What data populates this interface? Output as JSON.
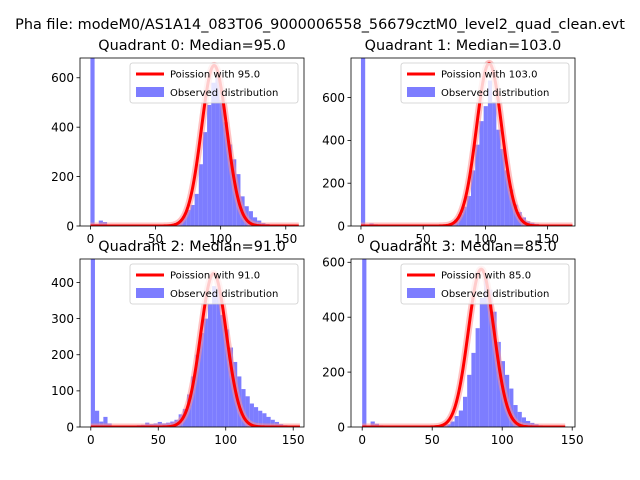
{
  "figure": {
    "suptitle": "Pha file: modeM0/AS1A14_083T06_9000006558_56679cztM0_level2_quad_clean.evt"
  },
  "colors": {
    "hist": "#7d7dff",
    "curve": "#ff0000",
    "curve_halo": "#ff9090"
  },
  "chart_data": [
    {
      "type": "bar",
      "title": "Quadrant 0: Median=95.0",
      "median": 95.0,
      "xlim": [
        -8,
        164
      ],
      "ylim": [
        0,
        680
      ],
      "xticks": [
        0,
        50,
        100,
        150
      ],
      "yticks": [
        0,
        200,
        400,
        600
      ],
      "legend": {
        "position": "top-right",
        "entries": [
          "Poission with 95.0",
          "Observed distribution"
        ]
      },
      "bin_width": 3.2,
      "series": [
        {
          "name": "Observed distribution",
          "kind": "histogram",
          "bins": [
            [
              0,
              680
            ],
            [
              3.2,
              8
            ],
            [
              6.4,
              22
            ],
            [
              9.6,
              16
            ],
            [
              12.8,
              6
            ],
            [
              16,
              4
            ],
            [
              19.2,
              3
            ],
            [
              22.4,
              2
            ],
            [
              25.6,
              2
            ],
            [
              28.8,
              2
            ],
            [
              32,
              2
            ],
            [
              35.2,
              2
            ],
            [
              38.4,
              2
            ],
            [
              41.6,
              3
            ],
            [
              44.8,
              3
            ],
            [
              48,
              4
            ],
            [
              51.2,
              4
            ],
            [
              54.4,
              5
            ],
            [
              57.6,
              6
            ],
            [
              60.8,
              8
            ],
            [
              64,
              12
            ],
            [
              67.2,
              20
            ],
            [
              70.4,
              40
            ],
            [
              73.6,
              65
            ],
            [
              76.8,
              85
            ],
            [
              80,
              130
            ],
            [
              83.2,
              250
            ],
            [
              86.4,
              380
            ],
            [
              89.6,
              490
            ],
            [
              92.8,
              580
            ],
            [
              96,
              600
            ],
            [
              99.2,
              510
            ],
            [
              102.4,
              420
            ],
            [
              105.6,
              330
            ],
            [
              108.8,
              270
            ],
            [
              112,
              210
            ],
            [
              115.2,
              120
            ],
            [
              118.4,
              80
            ],
            [
              121.6,
              60
            ],
            [
              124.8,
              35
            ],
            [
              128,
              22
            ],
            [
              131.2,
              12
            ],
            [
              134.4,
              8
            ],
            [
              137.6,
              5
            ],
            [
              140.8,
              3
            ],
            [
              144,
              2
            ],
            [
              147.2,
              2
            ],
            [
              150.4,
              1
            ],
            [
              153.6,
              1
            ]
          ]
        },
        {
          "name": "Poission with 95.0",
          "kind": "poisson_curve",
          "mean": 95.0,
          "peak": 650,
          "x_range": [
            0,
            160
          ]
        }
      ]
    },
    {
      "type": "bar",
      "title": "Quadrant 1: Median=103.0",
      "median": 103.0,
      "xlim": [
        -8,
        172
      ],
      "ylim": [
        0,
        785
      ],
      "xticks": [
        0,
        50,
        100,
        150
      ],
      "yticks": [
        0,
        200,
        400,
        600
      ],
      "legend": {
        "position": "top-right",
        "entries": [
          "Poission with 103.0",
          "Observed distribution"
        ]
      },
      "bin_width": 3.4,
      "series": [
        {
          "name": "Observed distribution",
          "kind": "histogram",
          "bins": [
            [
              0,
              785
            ],
            [
              3.4,
              6
            ],
            [
              6.8,
              12
            ],
            [
              10.2,
              8
            ],
            [
              13.6,
              5
            ],
            [
              17,
              3
            ],
            [
              20.4,
              2
            ],
            [
              23.8,
              2
            ],
            [
              27.2,
              2
            ],
            [
              30.6,
              2
            ],
            [
              34,
              2
            ],
            [
              37.4,
              2
            ],
            [
              40.8,
              2
            ],
            [
              44.2,
              2
            ],
            [
              47.6,
              3
            ],
            [
              51,
              3
            ],
            [
              54.4,
              3
            ],
            [
              57.8,
              4
            ],
            [
              61.2,
              5
            ],
            [
              64.6,
              6
            ],
            [
              68,
              8
            ],
            [
              71.4,
              15
            ],
            [
              74.8,
              30
            ],
            [
              78.2,
              55
            ],
            [
              81.6,
              90
            ],
            [
              85,
              140
            ],
            [
              88.4,
              260
            ],
            [
              91.8,
              380
            ],
            [
              95.2,
              490
            ],
            [
              98.6,
              560
            ],
            [
              102,
              680
            ],
            [
              105.4,
              580
            ],
            [
              108.8,
              450
            ],
            [
              112.2,
              360
            ],
            [
              115.6,
              260
            ],
            [
              119,
              170
            ],
            [
              122.4,
              100
            ],
            [
              125.8,
              65
            ],
            [
              129.2,
              40
            ],
            [
              132.6,
              22
            ],
            [
              136,
              15
            ],
            [
              139.4,
              10
            ],
            [
              142.8,
              6
            ],
            [
              146.2,
              4
            ],
            [
              149.6,
              3
            ],
            [
              153,
              2
            ],
            [
              156.4,
              2
            ],
            [
              159.8,
              1
            ],
            [
              163.2,
              1
            ]
          ]
        },
        {
          "name": "Poission with 103.0",
          "kind": "poisson_curve",
          "mean": 103.0,
          "peak": 760,
          "x_range": [
            0,
            170
          ]
        }
      ]
    },
    {
      "type": "bar",
      "title": "Quadrant 2: Median=91.0",
      "median": 91.0,
      "xlim": [
        -8,
        158
      ],
      "ylim": [
        0,
        465
      ],
      "xticks": [
        0,
        50,
        100,
        150
      ],
      "yticks": [
        0,
        100,
        200,
        300,
        400
      ],
      "legend": {
        "position": "top-right",
        "entries": [
          "Poission with 91.0",
          "Observed distribution"
        ]
      },
      "bin_width": 3.1,
      "series": [
        {
          "name": "Observed distribution",
          "kind": "histogram",
          "bins": [
            [
              0,
              465
            ],
            [
              3.1,
              45
            ],
            [
              6.2,
              15
            ],
            [
              9.3,
              28
            ],
            [
              12.4,
              10
            ],
            [
              15.5,
              4
            ],
            [
              18.6,
              3
            ],
            [
              21.7,
              3
            ],
            [
              24.8,
              3
            ],
            [
              27.9,
              4
            ],
            [
              31,
              4
            ],
            [
              34.1,
              5
            ],
            [
              37.2,
              6
            ],
            [
              40.3,
              12
            ],
            [
              43.4,
              8
            ],
            [
              46.5,
              10
            ],
            [
              49.6,
              14
            ],
            [
              52.7,
              10
            ],
            [
              55.8,
              12
            ],
            [
              58.9,
              15
            ],
            [
              62,
              20
            ],
            [
              65.1,
              35
            ],
            [
              68.2,
              50
            ],
            [
              71.3,
              90
            ],
            [
              74.4,
              140
            ],
            [
              77.5,
              200
            ],
            [
              80.6,
              260
            ],
            [
              83.7,
              300
            ],
            [
              86.8,
              340
            ],
            [
              89.9,
              390
            ],
            [
              93,
              385
            ],
            [
              96.1,
              310
            ],
            [
              99.2,
              270
            ],
            [
              102.3,
              220
            ],
            [
              105.4,
              180
            ],
            [
              108.5,
              140
            ],
            [
              111.6,
              105
            ],
            [
              114.7,
              85
            ],
            [
              117.8,
              65
            ],
            [
              120.9,
              55
            ],
            [
              124,
              45
            ],
            [
              127.1,
              38
            ],
            [
              130.2,
              28
            ],
            [
              133.3,
              20
            ],
            [
              136.4,
              14
            ],
            [
              139.5,
              8
            ],
            [
              142.6,
              5
            ],
            [
              145.7,
              3
            ],
            [
              148.8,
              2
            ]
          ]
        },
        {
          "name": "Poission with 91.0",
          "kind": "poisson_curve",
          "mean": 91.0,
          "peak": 425,
          "x_range": [
            0,
            155
          ]
        }
      ]
    },
    {
      "type": "bar",
      "title": "Quadrant 3: Median=85.0",
      "median": 85.0,
      "xlim": [
        -8,
        152
      ],
      "ylim": [
        0,
        612
      ],
      "xticks": [
        0,
        50,
        100,
        150
      ],
      "yticks": [
        0,
        200,
        400,
        600
      ],
      "legend": {
        "position": "top-right",
        "entries": [
          "Poission with 85.0",
          "Observed distribution"
        ]
      },
      "bin_width": 3.0,
      "series": [
        {
          "name": "Observed distribution",
          "kind": "histogram",
          "bins": [
            [
              0,
              612
            ],
            [
              3,
              5
            ],
            [
              6,
              20
            ],
            [
              9,
              12
            ],
            [
              12,
              6
            ],
            [
              15,
              3
            ],
            [
              18,
              2
            ],
            [
              21,
              2
            ],
            [
              24,
              2
            ],
            [
              27,
              2
            ],
            [
              30,
              2
            ],
            [
              33,
              2
            ],
            [
              36,
              2
            ],
            [
              39,
              2
            ],
            [
              42,
              2
            ],
            [
              45,
              3
            ],
            [
              48,
              3
            ],
            [
              51,
              4
            ],
            [
              54,
              5
            ],
            [
              57,
              7
            ],
            [
              60,
              10
            ],
            [
              63,
              20
            ],
            [
              66,
              40
            ],
            [
              69,
              60
            ],
            [
              72,
              110
            ],
            [
              75,
              190
            ],
            [
              78,
              270
            ],
            [
              81,
              360
            ],
            [
              84,
              470
            ],
            [
              87,
              540
            ],
            [
              90,
              500
            ],
            [
              93,
              420
            ],
            [
              96,
              310
            ],
            [
              99,
              240
            ],
            [
              102,
              190
            ],
            [
              105,
              140
            ],
            [
              108,
              80
            ],
            [
              111,
              55
            ],
            [
              114,
              35
            ],
            [
              117,
              22
            ],
            [
              120,
              15
            ],
            [
              123,
              10
            ],
            [
              126,
              6
            ],
            [
              129,
              4
            ],
            [
              132,
              3
            ],
            [
              135,
              2
            ],
            [
              138,
              2
            ],
            [
              141,
              1
            ],
            [
              144,
              1
            ]
          ]
        },
        {
          "name": "Poission with 85.0",
          "kind": "poisson_curve",
          "mean": 85.0,
          "peak": 575,
          "x_range": [
            0,
            145
          ]
        }
      ]
    }
  ]
}
